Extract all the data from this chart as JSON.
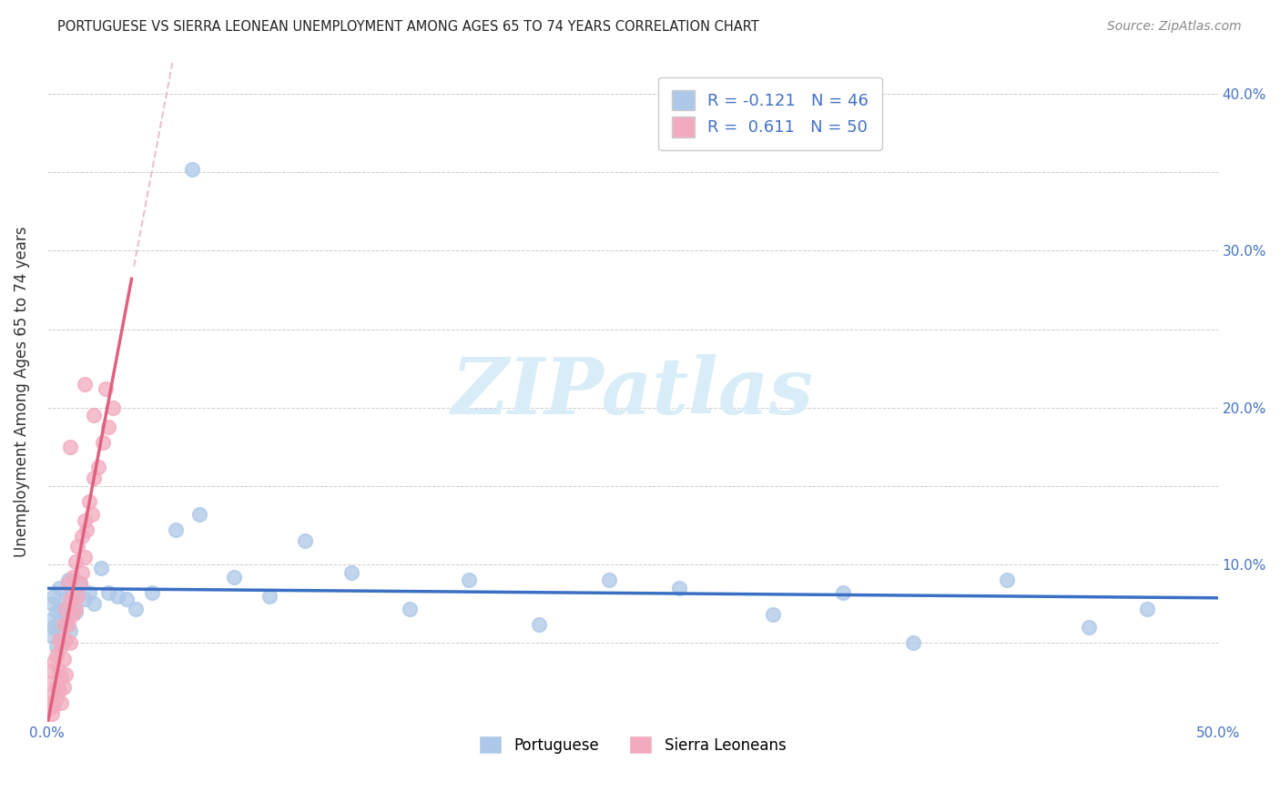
{
  "title": "PORTUGUESE VS SIERRA LEONEAN UNEMPLOYMENT AMONG AGES 65 TO 74 YEARS CORRELATION CHART",
  "source": "Source: ZipAtlas.com",
  "ylabel": "Unemployment Among Ages 65 to 74 years",
  "xlim": [
    0,
    0.5
  ],
  "ylim": [
    0,
    0.42
  ],
  "portuguese_R": "-0.121",
  "portuguese_N": "46",
  "sierra_R": "0.611",
  "sierra_N": "50",
  "portuguese_color": "#adc8e8",
  "sierra_color": "#f2abbe",
  "portuguese_line_color": "#3a6fc4",
  "sierra_line_color": "#e06080",
  "sierra_dash_color": "#e8b0c0",
  "watermark_color": "#d8edf8",
  "watermark": "ZIPatlas",
  "background": "#ffffff",
  "grid_color": "#cccccc",
  "tick_color": "#4472c4",
  "title_color": "#222222",
  "source_color": "#888888",
  "portuguese_x": [
    0.001,
    0.002,
    0.002,
    0.003,
    0.003,
    0.004,
    0.004,
    0.005,
    0.005,
    0.006,
    0.006,
    0.007,
    0.008,
    0.008,
    0.009,
    0.01,
    0.011,
    0.012,
    0.014,
    0.016,
    0.018,
    0.02,
    0.023,
    0.026,
    0.03,
    0.034,
    0.038,
    0.045,
    0.055,
    0.065,
    0.08,
    0.095,
    0.11,
    0.13,
    0.155,
    0.18,
    0.21,
    0.24,
    0.27,
    0.31,
    0.34,
    0.37,
    0.41,
    0.445,
    0.47,
    0.062
  ],
  "portuguese_y": [
    0.065,
    0.055,
    0.075,
    0.06,
    0.08,
    0.048,
    0.07,
    0.058,
    0.085,
    0.05,
    0.072,
    0.068,
    0.078,
    0.062,
    0.09,
    0.058,
    0.082,
    0.07,
    0.088,
    0.078,
    0.082,
    0.075,
    0.098,
    0.082,
    0.08,
    0.078,
    0.072,
    0.082,
    0.122,
    0.132,
    0.092,
    0.08,
    0.115,
    0.095,
    0.072,
    0.09,
    0.062,
    0.09,
    0.085,
    0.068,
    0.082,
    0.05,
    0.09,
    0.06,
    0.072,
    0.352
  ],
  "sierra_x": [
    0.001,
    0.001,
    0.002,
    0.002,
    0.002,
    0.003,
    0.003,
    0.003,
    0.004,
    0.004,
    0.004,
    0.005,
    0.005,
    0.005,
    0.006,
    0.006,
    0.006,
    0.007,
    0.007,
    0.007,
    0.008,
    0.008,
    0.008,
    0.009,
    0.009,
    0.01,
    0.01,
    0.011,
    0.011,
    0.012,
    0.012,
    0.013,
    0.013,
    0.014,
    0.015,
    0.015,
    0.016,
    0.016,
    0.017,
    0.018,
    0.019,
    0.02,
    0.022,
    0.024,
    0.026,
    0.028,
    0.016,
    0.02,
    0.01,
    0.025
  ],
  "sierra_y": [
    0.008,
    0.025,
    0.012,
    0.032,
    0.005,
    0.018,
    0.038,
    0.01,
    0.022,
    0.042,
    0.015,
    0.032,
    0.052,
    0.02,
    0.028,
    0.048,
    0.012,
    0.04,
    0.062,
    0.022,
    0.052,
    0.072,
    0.03,
    0.062,
    0.088,
    0.05,
    0.078,
    0.068,
    0.092,
    0.072,
    0.102,
    0.08,
    0.112,
    0.088,
    0.095,
    0.118,
    0.105,
    0.128,
    0.122,
    0.14,
    0.132,
    0.155,
    0.162,
    0.178,
    0.188,
    0.2,
    0.215,
    0.195,
    0.175,
    0.212
  ]
}
